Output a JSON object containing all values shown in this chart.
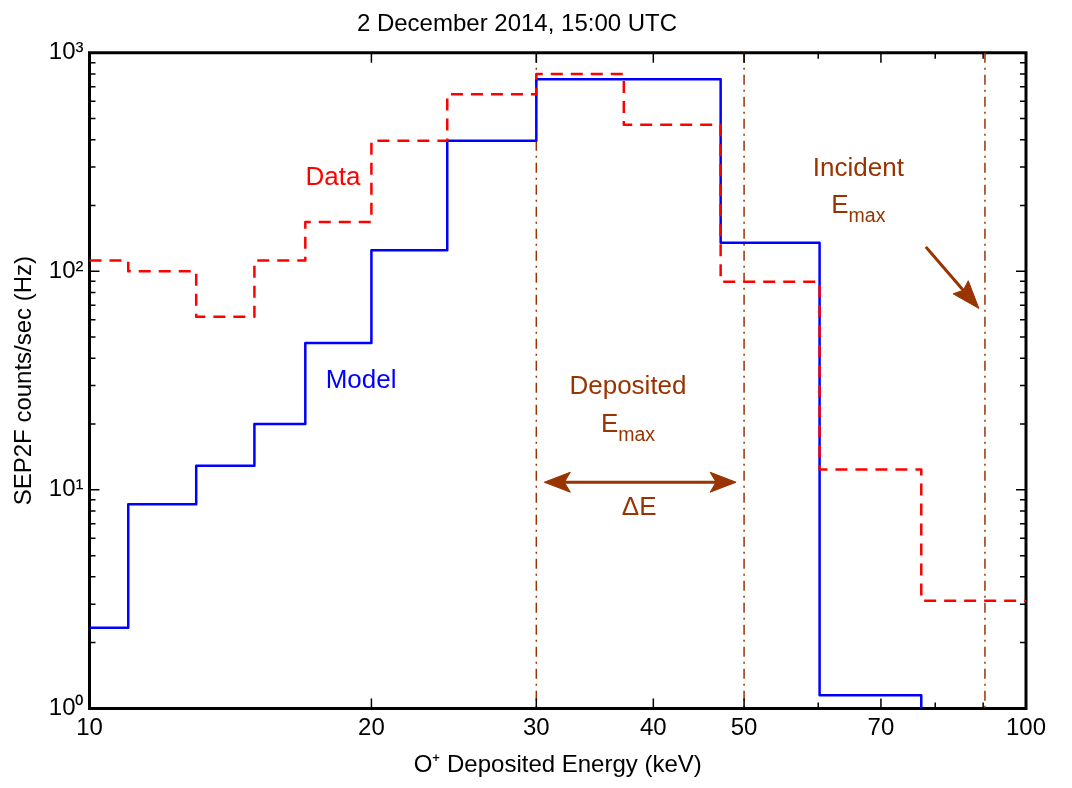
{
  "chart_data": {
    "type": "step",
    "title": "2 December 2014, 15:00 UTC",
    "xlabel": "O⁺ Deposited Energy (keV)",
    "ylabel": "SEP2F counts/sec (Hz)",
    "log": "xy",
    "xlim": [
      10,
      100
    ],
    "ylim": [
      1,
      1000
    ],
    "xticks": [
      10,
      20,
      30,
      40,
      50,
      {
        "value": 60,
        "label": null
      },
      70,
      {
        "value": 80,
        "label": null
      },
      {
        "value": 90,
        "label": null
      },
      100
    ],
    "yticks": [
      {
        "value": 1,
        "label": "10⁰"
      },
      {
        "value": 2,
        "label": null
      },
      {
        "value": 3,
        "label": null
      },
      {
        "value": 4,
        "label": null
      },
      {
        "value": 5,
        "label": null
      },
      {
        "value": 6,
        "label": null
      },
      {
        "value": 7,
        "label": null
      },
      {
        "value": 8,
        "label": null
      },
      {
        "value": 9,
        "label": null
      },
      {
        "value": 10,
        "label": "10¹"
      },
      {
        "value": 20,
        "label": null
      },
      {
        "value": 30,
        "label": null
      },
      {
        "value": 40,
        "label": null
      },
      {
        "value": 50,
        "label": null
      },
      {
        "value": 60,
        "label": null
      },
      {
        "value": 70,
        "label": null
      },
      {
        "value": 80,
        "label": null
      },
      {
        "value": 90,
        "label": null
      },
      {
        "value": 100,
        "label": "10²"
      },
      {
        "value": 200,
        "label": null
      },
      {
        "value": 300,
        "label": null
      },
      {
        "value": 400,
        "label": null
      },
      {
        "value": 500,
        "label": null
      },
      {
        "value": 600,
        "label": null
      },
      {
        "value": 700,
        "label": null
      },
      {
        "value": 800,
        "label": null
      },
      {
        "value": 900,
        "label": null
      },
      {
        "value": 1000,
        "label": "10³"
      }
    ],
    "marker": "none",
    "series": [
      {
        "name": "Data",
        "color": "#ff0000",
        "line_style": "dashed",
        "x": [
          10,
          11.0,
          13.0,
          15.0,
          17.0,
          20,
          24.1,
          30,
          37.2,
          47.2,
          60.2,
          77.3,
          100
        ],
        "values": [
          112,
          100,
          62,
          112,
          168,
          396,
          646,
          799,
          469,
          89.7,
          12.4,
          3.11,
          3.11
        ]
      },
      {
        "name": "Model",
        "color": "#0000ff",
        "line_style": "solid",
        "x": [
          10,
          11.0,
          13.0,
          15.0,
          17.0,
          20,
          24.1,
          30,
          47.2,
          60.2,
          77.3
        ],
        "values": [
          2.34,
          8.6,
          12.9,
          20,
          47,
          125,
          396,
          757,
          135,
          1.15,
          1
        ]
      }
    ],
    "ref_lines": [
      {
        "axis": "x",
        "value": 30,
        "color": "#993300",
        "line_style": "dashdot"
      },
      {
        "axis": "x",
        "value": 50,
        "color": "#993300",
        "line_style": "dashdot"
      },
      {
        "axis": "x",
        "value": 90.4,
        "color": "#993300",
        "line_style": "dashdot"
      }
    ],
    "annotations": [
      "Deposited\nE$_{max}$",
      "ΔE",
      "Incident\nE$_{max}$"
    ]
  }
}
